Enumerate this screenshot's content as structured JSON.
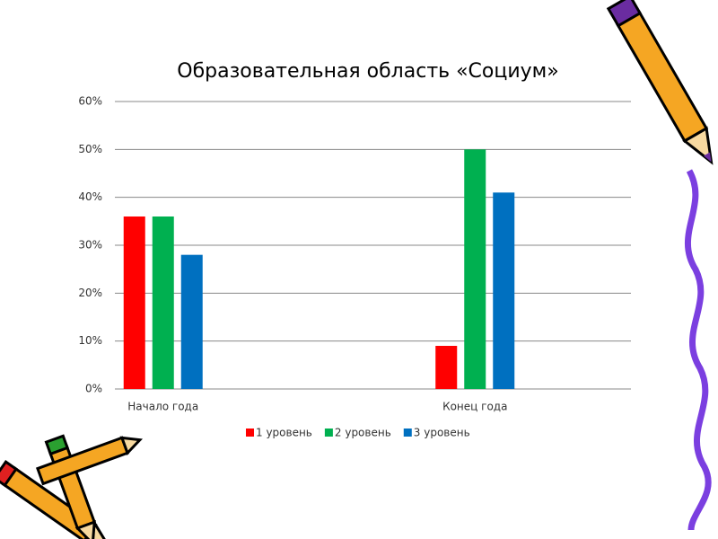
{
  "chart_data": {
    "type": "bar",
    "title": "Образовательная область «Социум»",
    "categories": [
      "Начало года",
      "Конец года"
    ],
    "series": [
      {
        "name": "1 уровень",
        "color": "#ff0000",
        "values": [
          36,
          9
        ]
      },
      {
        "name": "2 уровень",
        "color": "#00b050",
        "values": [
          36,
          50
        ]
      },
      {
        "name": "3 уровень",
        "color": "#0070c0",
        "values": [
          28,
          41
        ]
      }
    ],
    "ylim": [
      0,
      60
    ],
    "yticks": [
      {
        "value": 0,
        "label": "0%"
      },
      {
        "value": 10,
        "label": "10%"
      },
      {
        "value": 20,
        "label": "20%"
      },
      {
        "value": 30,
        "label": "30%"
      },
      {
        "value": 40,
        "label": "40%"
      },
      {
        "value": 50,
        "label": "50%"
      },
      {
        "value": 60,
        "label": "60%"
      }
    ],
    "grid": true,
    "legend": "bottom"
  }
}
